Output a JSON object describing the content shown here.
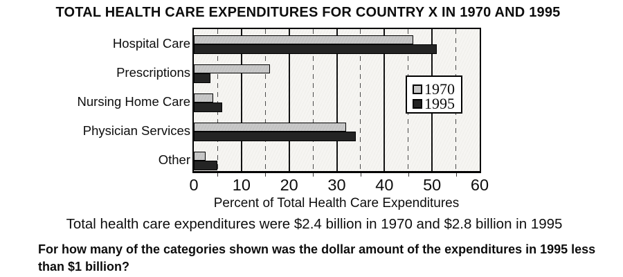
{
  "title": "TOTAL HEALTH CARE EXPENDITURES FOR COUNTRY X IN 1970 AND 1995",
  "chart_data": {
    "type": "bar",
    "orientation": "horizontal",
    "categories": [
      "Hospital Care",
      "Prescriptions",
      "Nursing Home Care",
      "Physician Services",
      "Other"
    ],
    "series": [
      {
        "name": "1970",
        "color": "#c8c8c8",
        "values": [
          46,
          16,
          4,
          32,
          2.5
        ]
      },
      {
        "name": "1995",
        "color": "#242424",
        "values": [
          51,
          3.5,
          6,
          34,
          5
        ]
      }
    ],
    "xlabel": "Percent of Total Health Care Expenditures",
    "xlim": [
      0,
      60
    ],
    "xticks": [
      0,
      10,
      20,
      30,
      40,
      50,
      60
    ],
    "grid": "vertical; solid lines every 10, dashed lines every 5",
    "legend_position": "inside-right"
  },
  "note": "Total health care expenditures were $2.4 billion in 1970 and $2.8 billion in 1995",
  "question": {
    "line1": "For how many of the categories shown was the dollar amount of the expenditures in 1995 less",
    "line2": "than $1 billion?"
  }
}
